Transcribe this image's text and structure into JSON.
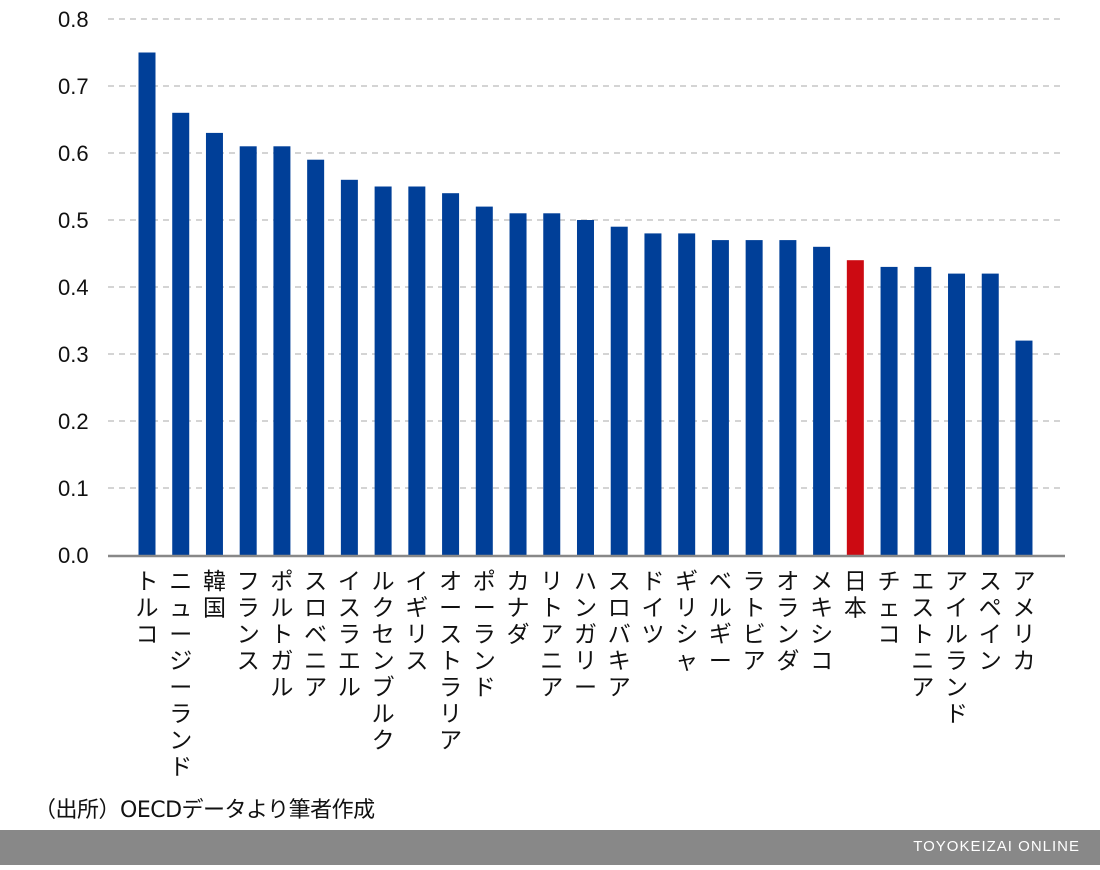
{
  "chart_data": {
    "type": "bar",
    "categories": [
      "トルコ",
      "ニュージーランド",
      "韓国",
      "フランス",
      "ポルトガル",
      "スロベニア",
      "イスラエル",
      "ルクセンブルク",
      "イギリス",
      "オーストラリア",
      "ポーランド",
      "カナダ",
      "リトアニア",
      "ハンガリー",
      "スロバキア",
      "ドイツ",
      "ギリシャ",
      "ベルギー",
      "ラトビア",
      "オランダ",
      "メキシコ",
      "日本",
      "チェコ",
      "エストニア",
      "アイルランド",
      "スペイン",
      "アメリカ"
    ],
    "values": [
      0.75,
      0.66,
      0.63,
      0.61,
      0.61,
      0.59,
      0.56,
      0.55,
      0.55,
      0.54,
      0.52,
      0.51,
      0.51,
      0.5,
      0.49,
      0.48,
      0.48,
      0.47,
      0.47,
      0.47,
      0.46,
      0.44,
      0.43,
      0.43,
      0.42,
      0.42,
      0.32
    ],
    "yticks": [
      "0.0",
      "0.1",
      "0.2",
      "0.3",
      "0.4",
      "0.5",
      "0.6",
      "0.7",
      "0.8"
    ],
    "ylim": [
      0,
      0.8
    ],
    "grid": true,
    "highlight_category": "日本",
    "colors": {
      "bar": "#003f98",
      "highlight": "#cc0a12",
      "grid": "#bbbbbb",
      "axis": "#888888"
    }
  },
  "source": "（出所）OECDデータより筆者作成",
  "brand": "TOYOKEIZAI ONLINE"
}
